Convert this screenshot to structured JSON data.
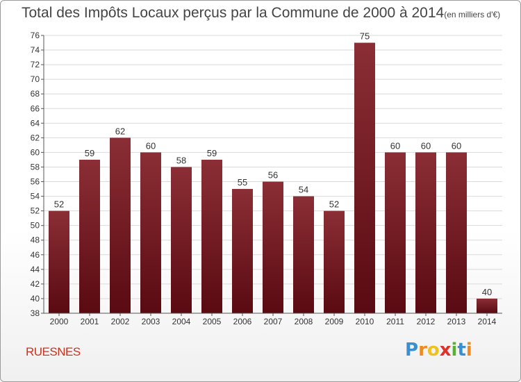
{
  "title": "Total des Impôts Locaux perçus par la Commune de 2000 à 2014",
  "title_unit": "(en milliers d'€)",
  "commune": "RUESNES",
  "brand": {
    "text": "Proxiti",
    "letters": [
      {
        "ch": "P",
        "color": "#3a8fd0"
      },
      {
        "ch": "r",
        "color": "#f08a1c"
      },
      {
        "ch": "o",
        "color": "#f0c020"
      },
      {
        "ch": "x",
        "color": "#e0302a"
      },
      {
        "ch": "i",
        "color": "#5ab030"
      },
      {
        "ch": "t",
        "color": "#3a8fd0"
      },
      {
        "ch": "i",
        "color": "#f08a1c"
      }
    ]
  },
  "colors": {
    "bar_top": "#8b2e35",
    "bar_bottom": "#5a0a12",
    "grid": "#d9d9d9",
    "axis_text": "#333333"
  },
  "chart_data": {
    "type": "bar",
    "title": "Total des Impôts Locaux perçus par la Commune de 2000 à 2014 (en milliers d'€)",
    "categories": [
      "2000",
      "2001",
      "2002",
      "2003",
      "2004",
      "2005",
      "2006",
      "2007",
      "2008",
      "2009",
      "2010",
      "2011",
      "2012",
      "2013",
      "2014"
    ],
    "values": [
      52,
      59,
      62,
      60,
      58,
      59,
      55,
      56,
      54,
      52,
      75,
      60,
      60,
      60,
      40
    ],
    "ylim": [
      38,
      76
    ],
    "ytick_step": 2,
    "xlabel": "",
    "ylabel": "",
    "grid": true
  }
}
